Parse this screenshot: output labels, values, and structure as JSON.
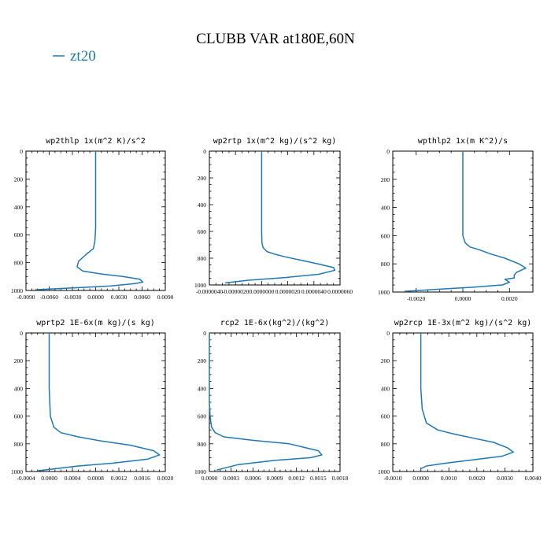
{
  "figure": {
    "title": "CLUBB VAR at180E,60N",
    "legend": [
      {
        "name": "zt20",
        "color": "#1f77b4"
      }
    ]
  },
  "chart_data": [
    {
      "type": "line",
      "title": "wp2thlp  1x(m^2 K)/s^2",
      "xlim": [
        -0.009,
        0.009
      ],
      "xticks": [
        -0.009,
        -0.006,
        -0.003,
        0,
        0.003,
        0.006,
        0.009
      ],
      "xtick_labels": [
        "-0.0090",
        "-0.0060",
        "-0.0030",
        "0.0000",
        "0.0030",
        "0.0060",
        "0.0090"
      ],
      "ylim": [
        1000,
        0
      ],
      "yticks": [
        0,
        200,
        400,
        600,
        800,
        1000
      ],
      "ytick_labels": [
        "0",
        "200",
        "400",
        "600",
        "800",
        "1000"
      ],
      "series": [
        {
          "color": "#1f77b4",
          "x": [
            0,
            0,
            0,
            0,
            -0.0001,
            -0.0003,
            -0.0012,
            -0.0022,
            -0.0024,
            -0.0017,
            0.0005,
            0.0035,
            0.0057,
            0.0061,
            0.0052,
            0.002,
            -0.004,
            -0.0078
          ],
          "y": [
            0,
            200,
            400,
            550,
            650,
            700,
            740,
            790,
            830,
            860,
            880,
            900,
            920,
            940,
            950,
            968,
            985,
            995
          ]
        }
      ]
    },
    {
      "type": "line",
      "title": "wp2rtp  1x(m^2 kg)/(s^2 kg)",
      "xlim": [
        -4e-06,
        6e-06
      ],
      "xticks": [
        -4e-06,
        -2e-06,
        0,
        2e-06,
        4e-06,
        6e-06
      ],
      "xtick_labels": [
        "-0.0000040",
        "-0.0000020",
        "0.0000000",
        "0.0000020",
        "0.0000040",
        "0.0000060"
      ],
      "ylim": [
        1000,
        0
      ],
      "yticks": [
        0,
        200,
        400,
        600,
        800,
        1000
      ],
      "ytick_labels": [
        "0",
        "200",
        "400",
        "600",
        "800",
        "1000"
      ],
      "series": [
        {
          "color": "#1f77b4",
          "x": [
            0,
            0,
            0,
            0,
            2e-08,
            1e-07,
            4e-07,
            1e-06,
            1.8e-06,
            3e-06,
            4.4e-06,
            5.5e-06,
            5.6e-06,
            4.4e-06,
            1.8e-06,
            -1e-06,
            -2.8e-06
          ],
          "y": [
            0,
            200,
            400,
            600,
            680,
            720,
            750,
            770,
            790,
            815,
            845,
            870,
            890,
            920,
            945,
            965,
            985
          ]
        }
      ]
    },
    {
      "type": "line",
      "title": "wpthlp2  1x(m K^2)/s",
      "xlim": [
        -0.003,
        0.003
      ],
      "xticks": [
        -0.002,
        0,
        0.002
      ],
      "xtick_labels": [
        "-0.0020",
        "0.0000",
        "0.0020"
      ],
      "ylim": [
        1000,
        0
      ],
      "yticks": [
        0,
        200,
        400,
        600,
        800,
        1000
      ],
      "ytick_labels": [
        "0",
        "200",
        "400",
        "600",
        "800",
        "1000"
      ],
      "series": [
        {
          "color": "#1f77b4",
          "x": [
            0,
            0,
            0,
            0,
            0.0001,
            0.0003,
            0.0007,
            0.0012,
            0.0018,
            0.0024,
            0.0027,
            0.0023,
            0.0022,
            0.0022,
            0.0018,
            0.002,
            0.0017,
            0.0005,
            -0.001,
            -0.0025
          ],
          "y": [
            0,
            200,
            400,
            600,
            650,
            680,
            700,
            730,
            760,
            800,
            830,
            860,
            880,
            900,
            910,
            930,
            950,
            965,
            980,
            995
          ]
        }
      ]
    },
    {
      "type": "line",
      "title": "wprtp2  1E-6x(m kg)/(s kg)",
      "xlim": [
        -0.0004,
        0.002
      ],
      "xticks": [
        -0.0004,
        0,
        0.0004,
        0.0008,
        0.0012,
        0.0016,
        0.002
      ],
      "xtick_labels": [
        "-0.0004",
        "0.0000",
        "0.0004",
        "0.0008",
        "0.0012",
        "0.0016",
        "0.0020"
      ],
      "ylim": [
        1000,
        0
      ],
      "yticks": [
        0,
        200,
        400,
        600,
        800,
        1000
      ],
      "ytick_labels": [
        "0",
        "200",
        "400",
        "600",
        "800",
        "1000"
      ],
      "series": [
        {
          "color": "#1f77b4",
          "x": [
            0,
            0,
            0,
            2e-05,
            8e-05,
            0.0002,
            0.0005,
            0.0009,
            0.0014,
            0.0018,
            0.0019,
            0.0017,
            0.0011,
            0.0005,
            0.0001,
            -0.0002
          ],
          "y": [
            0,
            200,
            400,
            600,
            680,
            720,
            750,
            780,
            810,
            850,
            880,
            910,
            940,
            960,
            980,
            995
          ]
        }
      ]
    },
    {
      "type": "line",
      "title": "rcp2  1E-6x(kg^2)/(kg^2)",
      "xlim": [
        0,
        0.0018
      ],
      "xticks": [
        0,
        0.0003,
        0.0006,
        0.0009,
        0.0012,
        0.0015,
        0.0018
      ],
      "xtick_labels": [
        "0.0000",
        "0.0003",
        "0.0006",
        "0.0009",
        "0.0012",
        "0.0015",
        "0.0018"
      ],
      "ylim": [
        1000,
        0
      ],
      "yticks": [
        0,
        200,
        400,
        600,
        800,
        1000
      ],
      "ytick_labels": [
        "0",
        "200",
        "400",
        "600",
        "800",
        "1000"
      ],
      "series": [
        {
          "color": "#1f77b4",
          "x": [
            0,
            0,
            0,
            1e-05,
            3e-05,
            8e-05,
            0.0002,
            0.0006,
            0.0011,
            0.0015,
            0.00155,
            0.0014,
            0.0009,
            0.0004,
            0.0001
          ],
          "y": [
            0,
            400,
            500,
            600,
            680,
            720,
            750,
            775,
            800,
            850,
            880,
            900,
            920,
            950,
            990
          ]
        }
      ]
    },
    {
      "type": "line",
      "title": "wp2rcp  1E-3x(m^2 kg)/(s^2 kg)",
      "xlim": [
        -0.001,
        0.004
      ],
      "xticks": [
        -0.001,
        0,
        0.001,
        0.002,
        0.003,
        0.004
      ],
      "xtick_labels": [
        "-0.0010",
        "0.0000",
        "0.0010",
        "0.0020",
        "0.0030",
        "0.0040"
      ],
      "ylim": [
        1000,
        0
      ],
      "yticks": [
        0,
        200,
        400,
        600,
        800,
        1000
      ],
      "ytick_labels": [
        "0",
        "200",
        "400",
        "600",
        "800",
        "1000"
      ],
      "series": [
        {
          "color": "#1f77b4",
          "x": [
            0,
            0,
            0,
            5e-05,
            0.0002,
            0.0006,
            0.0012,
            0.0019,
            0.0026,
            0.0031,
            0.0033,
            0.0029,
            0.0019,
            0.0009,
            0.0002,
            0,
            0
          ],
          "y": [
            0,
            200,
            400,
            550,
            650,
            700,
            730,
            760,
            790,
            830,
            860,
            890,
            915,
            940,
            960,
            980,
            995
          ]
        }
      ]
    }
  ]
}
